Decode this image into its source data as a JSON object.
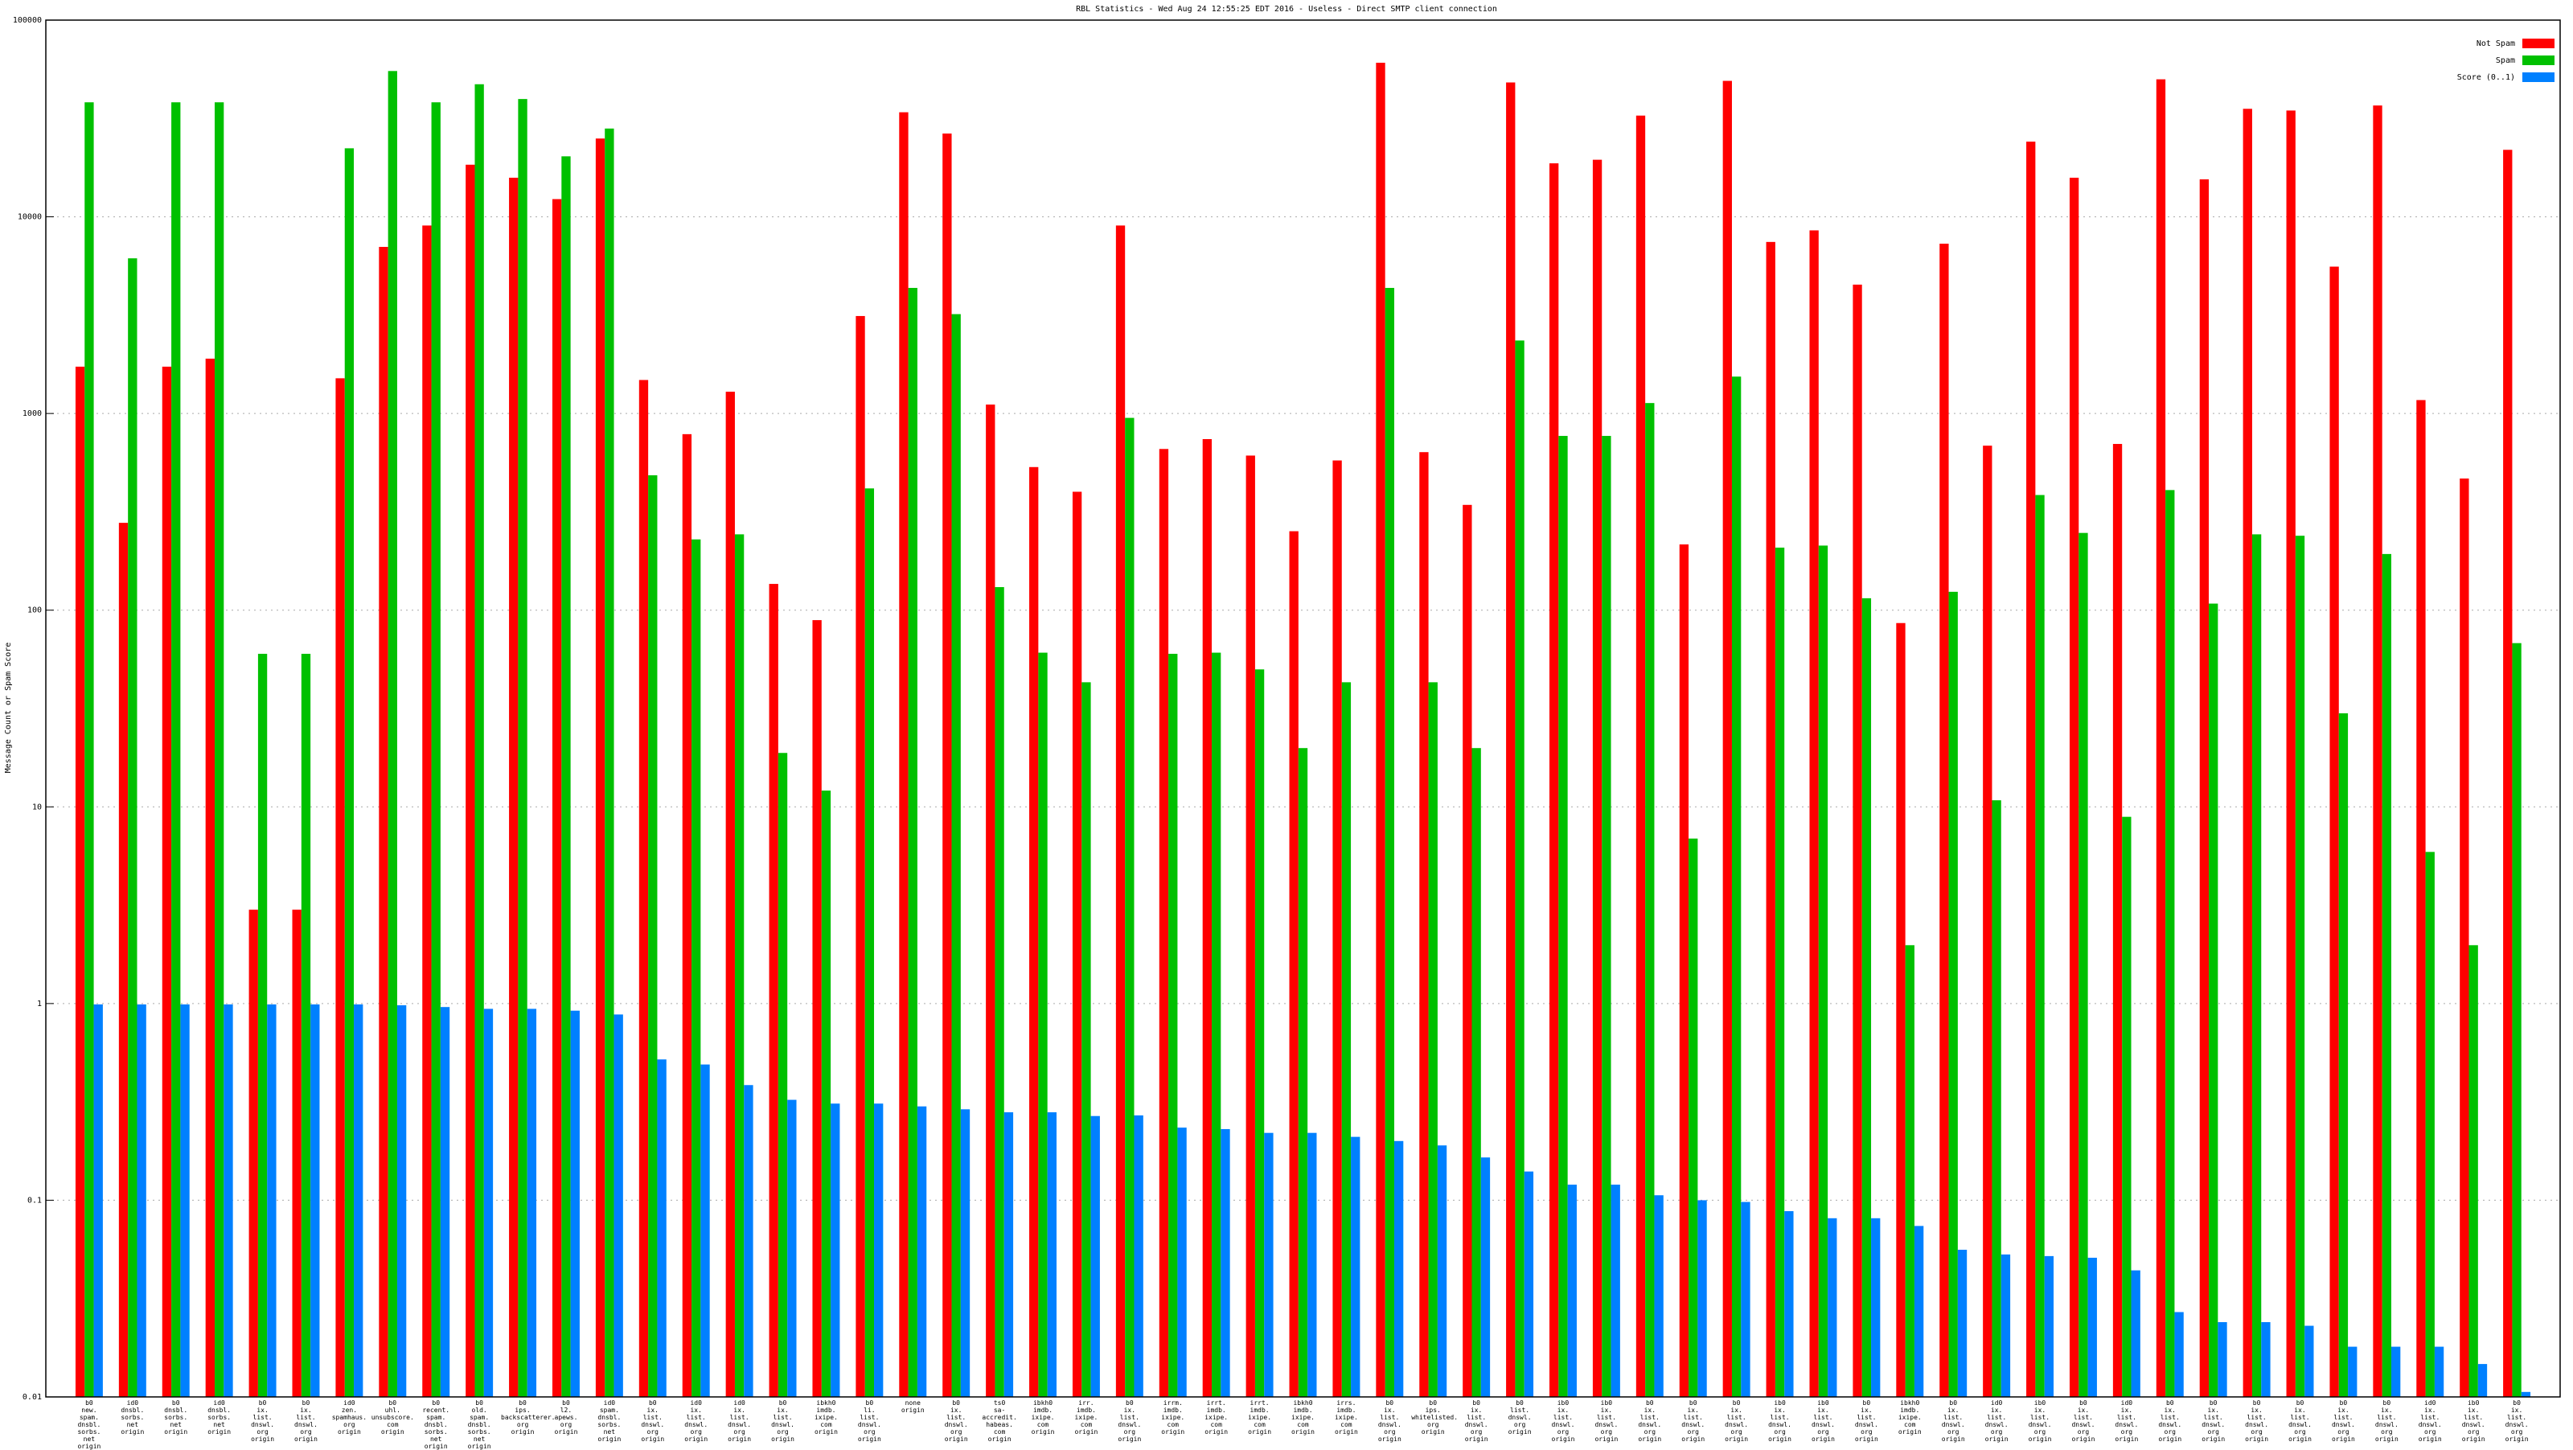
{
  "chart_data": {
    "type": "bar",
    "title": "RBL Statistics - Wed Aug 24 12:55:25 EDT 2016 - Useless - Direct SMTP client connection",
    "y_label": "Message Count or Spam Score",
    "log_y": true,
    "grid": true,
    "legend": "top-right",
    "ylim": [
      0.01,
      100000
    ],
    "yticks": [
      0.01,
      0.1,
      1,
      10,
      100,
      1000,
      10000,
      100000
    ],
    "categories": [
      "b0\nnew.\nspam.\ndnsbl.\nsorbs.\nnet\norigin",
      "id0\ndnsbl.\nsorbs.\nnet\norigin",
      "b0\ndnsbl.\nsorbs.\nnet\norigin",
      "id0\ndnsbl.\nsorbs.\nnet\norigin",
      "b0\nix.\nlist.\ndnswl.\norg\norigin",
      "b0\nix.\nlist.\ndnswl.\norg\norigin",
      "id0\nzen.\nspamhaus.\norg\norigin",
      "b0\nuhl.\nunsubscore.\ncom\norigin",
      "b0\nrecent.\nspam.\ndnsbl.\nsorbs.\nnet\norigin",
      "b0\nold.\nspam.\ndnsbl.\nsorbs.\nnet\norigin",
      "b0\nips.\nbackscatterer.\norg\norigin",
      "b0\nl2.\napews.\norg\norigin",
      "id0\nspam.\ndnsbl.\nsorbs.\nnet\norigin",
      "b0\nix.\nlist.\ndnswl.\norg\norigin",
      "id0\nix.\nlist.\ndnswl.\norg\norigin",
      "id0\nix.\nlist.\ndnswl.\norg\norigin",
      "b0\nix.\nlist.\ndnswl.\norg\norigin",
      "ibkh0\nimdb.\nixipe.\ncom\norigin",
      "b0\nli.\nlist.\ndnswl.\norg\norigin",
      "none\norigin",
      "b0\nix.\nlist.\ndnswl.\norg\norigin",
      "ts0\nsa-accredit.\nhabeas.\ncom\norigin",
      "ibkh0\nimdb.\nixipe.\ncom\norigin",
      "irr.\nimdb.\nixipe.\ncom\norigin",
      "b0\nix.\nlist.\ndnswl.\norg\norigin",
      "irrm.\nimdb.\nixipe.\ncom\norigin",
      "irrt.\nimdb.\nixipe.\ncom\norigin",
      "irrt.\nimdb.\nixipe.\ncom\norigin",
      "ibkh0\nimdb.\nixipe.\ncom\norigin",
      "irrs.\nimdb.\nixipe.\ncom\norigin",
      "b0\nix.\nlist.\ndnswl.\norg\norigin",
      "b0\nips.\nwhitelisted.\norg\norigin",
      "b0\nix.\nlist.\ndnswl.\norg\norigin",
      "b0\nlist.\ndnswl.\norg\norigin",
      "ib0\nix.\nlist.\ndnswl.\norg\norigin",
      "ib0\nix.\nlist.\ndnswl.\norg\norigin",
      "b0\nix.\nlist.\ndnswl.\norg\norigin",
      "b0\nix.\nlist.\ndnswl.\norg\norigin",
      "b0\nix.\nlist.\ndnswl.\norg\norigin",
      "ib0\nix.\nlist.\ndnswl.\norg\norigin",
      "ib0\nix.\nlist.\ndnswl.\norg\norigin",
      "b0\nix.\nlist.\ndnswl.\norg\norigin",
      "ibkh0\nimdb.\nixipe.\ncom\norigin",
      "b0\nix.\nlist.\ndnswl.\norg\norigin",
      "id0\nix.\nlist.\ndnswl.\norg\norigin",
      "ib0\nix.\nlist.\ndnswl.\norg\norigin",
      "b0\nix.\nlist.\ndnswl.\norg\norigin",
      "id0\nix.\nlist.\ndnswl.\norg\norigin",
      "b0\nix.\nlist.\ndnswl.\norg\norigin",
      "b0\nix.\nlist.\ndnswl.\norg\norigin",
      "b0\nix.\nlist.\ndnswl.\norg\norigin",
      "b0\nix.\nlist.\ndnswl.\norg\norigin",
      "b0\nix.\nlist.\ndnswl.\norg\norigin",
      "b0\nix.\nlist.\ndnswl.\norg\norigin",
      "id0\nix.\nlist.\ndnswl.\norg\norigin",
      "ib0\nix.\nlist.\ndnswl.\norg\norigin",
      "b0\nix.\nlist.\ndnswl.\norg\norigin"
    ],
    "series": [
      {
        "name": "Not Spam",
        "color": "#ff0000",
        "values": [
          1730,
          278,
          1730,
          1900,
          3,
          3,
          1510,
          7030,
          9030,
          18400,
          15800,
          12300,
          25000,
          1480,
          785,
          1290,
          136,
          89,
          3130,
          34000,
          26500,
          1110,
          534,
          400,
          9030,
          660,
          741,
          611,
          252,
          577,
          60700,
          636,
          343,
          48200,
          18700,
          19500,
          32700,
          216,
          49100,
          7450,
          8530,
          4520,
          86,
          7300,
          686,
          24100,
          15800,
          700,
          50000,
          15500,
          35400,
          34700,
          5580,
          36800,
          1170,
          467,
          21900
        ]
      },
      {
        "name": "Spam",
        "color": "#00c000",
        "values": [
          38200,
          6150,
          38200,
          38200,
          60,
          60,
          22300,
          55100,
          38200,
          47200,
          39700,
          20300,
          28100,
          485,
          229,
          243,
          18.8,
          12.1,
          416,
          4350,
          3200,
          131,
          60.8,
          43,
          950,
          60,
          60.8,
          50,
          19.9,
          43,
          4350,
          43,
          19.9,
          2350,
          769,
          769,
          1130,
          6.9,
          1540,
          208,
          213,
          115,
          1.98,
          124,
          10.8,
          385,
          247,
          8.9,
          408,
          108,
          243,
          239,
          29.9,
          193,
          5.9,
          1.98,
          68
        ]
      },
      {
        "name": "Score (0..1)",
        "color": "#0080ff",
        "values": [
          0.99,
          0.99,
          0.99,
          0.99,
          0.99,
          0.99,
          0.99,
          0.98,
          0.96,
          0.94,
          0.94,
          0.92,
          0.88,
          0.52,
          0.49,
          0.385,
          0.324,
          0.31,
          0.31,
          0.3,
          0.29,
          0.28,
          0.28,
          0.268,
          0.27,
          0.234,
          0.23,
          0.22,
          0.22,
          0.21,
          0.2,
          0.19,
          0.165,
          0.14,
          0.12,
          0.12,
          0.106,
          0.1,
          0.098,
          0.088,
          0.081,
          0.081,
          0.074,
          0.056,
          0.053,
          0.052,
          0.051,
          0.044,
          0.027,
          0.024,
          0.024,
          0.023,
          0.018,
          0.018,
          0.018,
          0.0147,
          0.0106
        ]
      }
    ]
  }
}
